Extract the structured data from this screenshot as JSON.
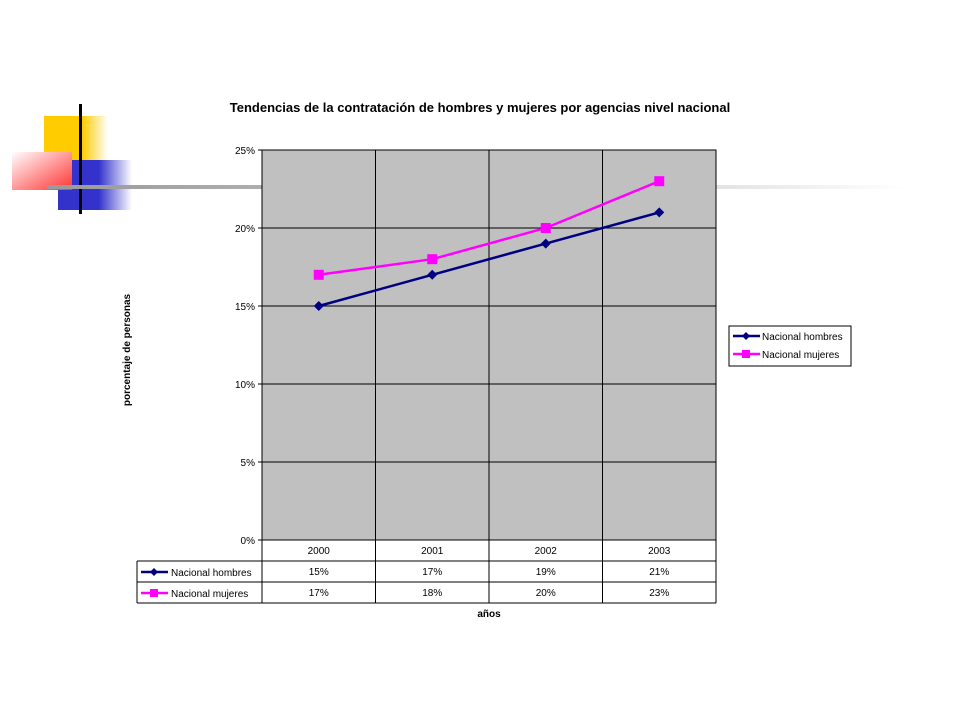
{
  "colors": {
    "plot_bg": "#c0c0c0",
    "hombres": "#000080",
    "mujeres": "#ff00ff",
    "deco_yellow": "#ffcc00",
    "deco_red": "#ff3333",
    "deco_blue": "#3333cc"
  },
  "chart_data": {
    "type": "line",
    "title": "Tendencias de la contratación de hombres y mujeres por agencias nivel nacional",
    "xlabel": "años",
    "ylabel": "porcentaje de personas",
    "categories": [
      "2000",
      "2001",
      "2002",
      "2003"
    ],
    "ylim": [
      0,
      25
    ],
    "yticks": [
      "0%",
      "5%",
      "10%",
      "15%",
      "20%",
      "25%"
    ],
    "grid": true,
    "legend_position": "right",
    "series": [
      {
        "name": "Nacional hombres",
        "marker": "diamond",
        "values": [
          15,
          17,
          19,
          21
        ],
        "labels": [
          "15%",
          "17%",
          "19%",
          "21%"
        ]
      },
      {
        "name": "Nacional mujeres",
        "marker": "square",
        "values": [
          17,
          18,
          20,
          23
        ],
        "labels": [
          "17%",
          "18%",
          "20%",
          "23%"
        ]
      }
    ]
  }
}
